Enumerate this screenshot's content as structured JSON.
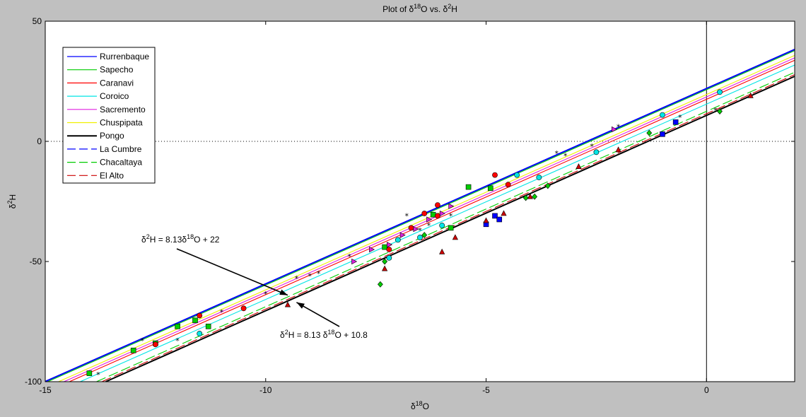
{
  "chart_data": {
    "type": "scatter",
    "title": "Plot of δ18O vs. δ2H",
    "title_parts": {
      "pre": "Plot  of  δ",
      "sup1": "18",
      "mid": "O  vs.  δ",
      "sup2": "2",
      "post": "H"
    },
    "xlabel": "δ18O",
    "xlabel_parts": {
      "pre": "δ",
      "sup": "18",
      "post": "O"
    },
    "ylabel": "δ2H",
    "ylabel_parts": {
      "pre": "δ",
      "sup": "2",
      "post": "H"
    },
    "xlim": [
      -15,
      2
    ],
    "ylim": [
      -100,
      50
    ],
    "x_ticks": [
      -15,
      -10,
      -5,
      0
    ],
    "y_ticks": [
      -100,
      -50,
      0,
      50
    ],
    "reference_lines": [
      {
        "type": "horizontal",
        "value": 0,
        "style": "dotted"
      },
      {
        "type": "vertical",
        "value": 0,
        "style": "solid"
      }
    ],
    "legend_position": "top-left",
    "series": [
      {
        "name": "Rurrenbaque",
        "color": "#0000ff",
        "dash": "solid",
        "marker": "none",
        "line": {
          "slope": 8.13,
          "intercept": 22
        },
        "points": []
      },
      {
        "name": "Sapecho",
        "color": "#00cc00",
        "dash": "solid",
        "marker": "square",
        "line": {
          "slope": 8.13,
          "intercept": 21.5
        },
        "points": [
          [
            -14.0,
            -96.5
          ],
          [
            -13.0,
            -87
          ],
          [
            -12.5,
            -84
          ],
          [
            -12.0,
            -77
          ],
          [
            -11.6,
            -74.5
          ],
          [
            -11.3,
            -77
          ],
          [
            -7.3,
            -44
          ],
          [
            -6.2,
            -30.5
          ],
          [
            -5.8,
            -36
          ],
          [
            -5.4,
            -19
          ],
          [
            -4.9,
            -19.5
          ]
        ]
      },
      {
        "name": "Caranavi",
        "color": "#ff0000",
        "dash": "solid",
        "marker": "circle",
        "line": {
          "slope": 8.13,
          "intercept": 17.5
        },
        "points": [
          [
            -12.5,
            -84.5
          ],
          [
            -11.5,
            -72.5
          ],
          [
            -10.5,
            -69.5
          ],
          [
            -7.2,
            -45
          ],
          [
            -6.7,
            -36
          ],
          [
            -6.4,
            -30
          ],
          [
            -6.1,
            -26.5
          ],
          [
            -6.1,
            -31
          ],
          [
            -4.8,
            -14
          ],
          [
            -4.5,
            -18
          ]
        ]
      },
      {
        "name": "Coroico",
        "color": "#00e5e5",
        "dash": "solid",
        "marker": "circle",
        "line": {
          "slope": 8.13,
          "intercept": 15.5
        },
        "points": [
          [
            -11.5,
            -80
          ],
          [
            -7.2,
            -48.5
          ],
          [
            -7.0,
            -41
          ],
          [
            -6.5,
            -40
          ],
          [
            -6.0,
            -35
          ],
          [
            -4.3,
            -14
          ],
          [
            -3.8,
            -15
          ],
          [
            -2.5,
            -4.5
          ],
          [
            -1.0,
            11
          ],
          [
            0.3,
            20.5
          ]
        ]
      },
      {
        "name": "Sacremento",
        "color": "#e020e0",
        "dash": "solid",
        "marker": "triangle-right",
        "line": {
          "slope": 8.13,
          "intercept": 18.5
        },
        "points": [
          [
            -8.0,
            -50
          ],
          [
            -7.6,
            -45
          ],
          [
            -7.2,
            -43
          ],
          [
            -6.9,
            -39
          ],
          [
            -6.6,
            -36.5
          ],
          [
            -6.3,
            -32.5
          ],
          [
            -6.0,
            -30
          ],
          [
            -5.8,
            -27
          ],
          [
            -2.1,
            5
          ]
        ]
      },
      {
        "name": "Chuspipata",
        "color": "#f0f000",
        "dash": "solid",
        "marker": "none",
        "line": {
          "slope": 8.13,
          "intercept": 19.5
        },
        "points": []
      },
      {
        "name": "Pongo",
        "color": "#000000",
        "dash": "solid",
        "marker": "star",
        "line": {
          "slope": 8.13,
          "intercept": 10.8
        },
        "points": [
          [
            -13.8,
            -97
          ],
          [
            -12.8,
            -83
          ],
          [
            -12.0,
            -83
          ],
          [
            -11.0,
            -71
          ],
          [
            -10.0,
            -63.5
          ],
          [
            -9.3,
            -57
          ],
          [
            -9.0,
            -56
          ],
          [
            -8.8,
            -55
          ],
          [
            -8.1,
            -48
          ],
          [
            -6.8,
            -31
          ],
          [
            -6.5,
            -37
          ],
          [
            -6.3,
            -35
          ],
          [
            -5.8,
            -31
          ],
          [
            -3.4,
            -5
          ],
          [
            -3.2,
            -6
          ],
          [
            -2.6,
            -2
          ],
          [
            -2.0,
            6
          ],
          [
            -0.6,
            10
          ],
          [
            0.2,
            13
          ]
        ]
      },
      {
        "name": "La Cumbre",
        "color": "#0000ff",
        "dash": "dashed",
        "marker": "square",
        "line": {
          "slope": 8.13,
          "intercept": 22
        },
        "points": [
          [
            -5.0,
            -34.5
          ],
          [
            -4.8,
            -31
          ],
          [
            -4.7,
            -32.5
          ],
          [
            -1.0,
            3
          ],
          [
            -0.7,
            8
          ]
        ]
      },
      {
        "name": "Chacaltaya",
        "color": "#00cc00",
        "dash": "dashed",
        "marker": "diamond",
        "line": {
          "slope": 8.13,
          "intercept": 12.5
        },
        "points": [
          [
            -7.4,
            -59.5
          ],
          [
            -7.3,
            -50
          ],
          [
            -6.4,
            -39
          ],
          [
            -4.1,
            -23.5
          ],
          [
            -3.9,
            -23
          ],
          [
            -3.6,
            -18.5
          ],
          [
            -1.3,
            3.5
          ],
          [
            0.3,
            12.5
          ]
        ]
      },
      {
        "name": "El Alto",
        "color": "#cc0000",
        "dash": "dashed",
        "marker": "triangle-up",
        "line": {
          "slope": 8.13,
          "intercept": 11.5
        },
        "points": [
          [
            -9.5,
            -68
          ],
          [
            -7.3,
            -53
          ],
          [
            -6.0,
            -46
          ],
          [
            -5.7,
            -40
          ],
          [
            -5.0,
            -33
          ],
          [
            -4.6,
            -30
          ],
          [
            -4.0,
            -23
          ],
          [
            -2.9,
            -10.5
          ],
          [
            -2.0,
            -3.5
          ],
          [
            1.0,
            19
          ]
        ]
      }
    ],
    "annotations": [
      {
        "id": "upper",
        "text": "δ2H = 8.13δ18O + 22",
        "parts": {
          "pre": "δ",
          "sup1": "2",
          "mid": "H = 8.13δ",
          "sup2": "18",
          "post": "O + 22"
        },
        "arrow_to": [
          -9.5,
          -64
        ]
      },
      {
        "id": "lower",
        "text": "δ2H = 8.13 δ18O + 10.8",
        "parts": {
          "pre": "δ",
          "sup1": "2",
          "mid": "H = 8.13 δ",
          "sup2": "18",
          "post": "O + 10.8"
        },
        "arrow_to": [
          -9.3,
          -67
        ]
      }
    ]
  }
}
